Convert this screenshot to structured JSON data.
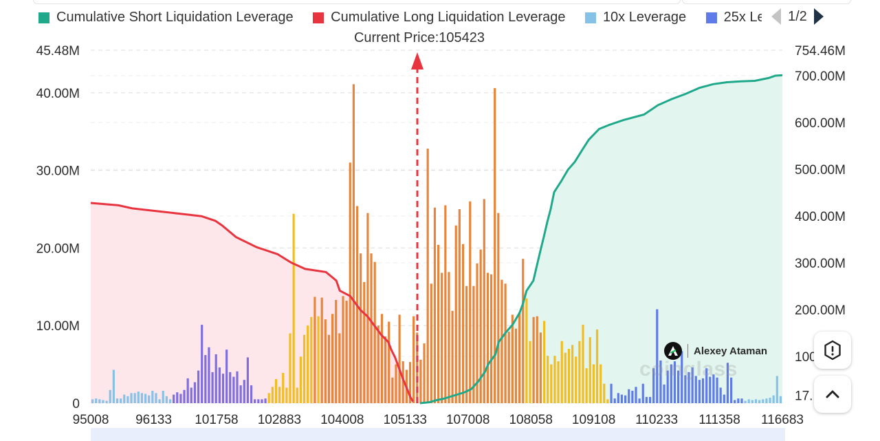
{
  "legend": {
    "items": [
      {
        "label": "Cumulative Short Liquidation Leverage",
        "color": "#1fa88a"
      },
      {
        "label": "Cumulative Long Liquidation Leverage",
        "color": "#e8343f"
      },
      {
        "label": "10x Leverage",
        "color": "#86c2e8"
      },
      {
        "label": "25x Leverage",
        "color": "#5f7bea"
      }
    ],
    "page": "1/2"
  },
  "current_price_label": "Current Price:105423",
  "watermark": {
    "author": "Alexey Ataman",
    "brand": "coinglass"
  },
  "colors": {
    "short_area": "#e2f5ef",
    "long_area": "#fde7ea",
    "bar_blue": "#5f7bea",
    "bar_purple": "#7f6ee0",
    "bar_lightblue": "#86c2e8",
    "bar_yellow": "#f2bd22",
    "bar_orange": "#e8853a",
    "marker": "#e8343f"
  },
  "chart_data": {
    "type": "bar",
    "x_ticks": [
      "95008",
      "96133",
      "101758",
      "102883",
      "104008",
      "105133",
      "107008",
      "108058",
      "109108",
      "110233",
      "111358",
      "116683"
    ],
    "left_axis": {
      "ticks": [
        "0",
        "10.00M",
        "20.00M",
        "30.00M",
        "40.00M",
        "45.48M"
      ],
      "max": 45.48
    },
    "right_axis": {
      "ticks": [
        "17.",
        "100",
        "200.00M",
        "300.00M",
        "400.00M",
        "500.00M",
        "600.00M",
        "700.00M",
        "754.46M"
      ],
      "max": 754.46
    },
    "current_price": 105423,
    "bars_unit": "M",
    "bars": [
      {
        "v": 0.5,
        "c": "lb"
      },
      {
        "v": 0.6,
        "c": "lb"
      },
      {
        "v": 0.5,
        "c": "lb"
      },
      {
        "v": 0.4,
        "c": "lb"
      },
      {
        "v": 0.3,
        "c": "lb"
      },
      {
        "v": 1.7,
        "c": "lb"
      },
      {
        "v": 4.3,
        "c": "lb"
      },
      {
        "v": 0.6,
        "c": "lb"
      },
      {
        "v": 0.6,
        "c": "lb"
      },
      {
        "v": 1.1,
        "c": "lb"
      },
      {
        "v": 0.9,
        "c": "lb"
      },
      {
        "v": 1.3,
        "c": "lb"
      },
      {
        "v": 1.3,
        "c": "lb"
      },
      {
        "v": 1.5,
        "c": "lb"
      },
      {
        "v": 1.3,
        "c": "lb"
      },
      {
        "v": 1.2,
        "c": "lb"
      },
      {
        "v": 1.0,
        "c": "lb"
      },
      {
        "v": 1.6,
        "c": "lb"
      },
      {
        "v": 1.3,
        "c": "lb"
      },
      {
        "v": 0.5,
        "c": "lb"
      },
      {
        "v": 1.6,
        "c": "lb"
      },
      {
        "v": 0.9,
        "c": "lb"
      },
      {
        "v": 0.5,
        "c": "lb"
      },
      {
        "v": 1.1,
        "c": "pu"
      },
      {
        "v": 1.4,
        "c": "pu"
      },
      {
        "v": 1.2,
        "c": "pu"
      },
      {
        "v": 1.7,
        "c": "pu"
      },
      {
        "v": 3.2,
        "c": "pu"
      },
      {
        "v": 2.0,
        "c": "pu"
      },
      {
        "v": 2.7,
        "c": "pu"
      },
      {
        "v": 4.2,
        "c": "pu"
      },
      {
        "v": 10.1,
        "c": "pu"
      },
      {
        "v": 6.2,
        "c": "pu"
      },
      {
        "v": 7.2,
        "c": "pu"
      },
      {
        "v": 4.0,
        "c": "pu"
      },
      {
        "v": 6.3,
        "c": "pu"
      },
      {
        "v": 4.6,
        "c": "pu"
      },
      {
        "v": 3.8,
        "c": "pu"
      },
      {
        "v": 6.9,
        "c": "pu"
      },
      {
        "v": 4.0,
        "c": "pu"
      },
      {
        "v": 3.4,
        "c": "pu"
      },
      {
        "v": 4.1,
        "c": "pu"
      },
      {
        "v": 2.3,
        "c": "pu"
      },
      {
        "v": 3.0,
        "c": "pu"
      },
      {
        "v": 5.9,
        "c": "pu"
      },
      {
        "v": 2.3,
        "c": "pu"
      },
      {
        "v": 0.5,
        "c": "pu"
      },
      {
        "v": 0.5,
        "c": "pu"
      },
      {
        "v": 0.5,
        "c": "pu"
      },
      {
        "v": 0.6,
        "c": "pu"
      },
      {
        "v": 1.3,
        "c": "ye"
      },
      {
        "v": 2.1,
        "c": "ye"
      },
      {
        "v": 3.1,
        "c": "ye"
      },
      {
        "v": 2.1,
        "c": "ye"
      },
      {
        "v": 3.9,
        "c": "ye"
      },
      {
        "v": 2.0,
        "c": "ye"
      },
      {
        "v": 9.0,
        "c": "ye"
      },
      {
        "v": 24.4,
        "c": "ye"
      },
      {
        "v": 2.0,
        "c": "ye"
      },
      {
        "v": 6.0,
        "c": "ye"
      },
      {
        "v": 8.8,
        "c": "ye"
      },
      {
        "v": 10.0,
        "c": "ye"
      },
      {
        "v": 11.1,
        "c": "ye"
      },
      {
        "v": 13.7,
        "c": "or"
      },
      {
        "v": 11.2,
        "c": "ye"
      },
      {
        "v": 13.6,
        "c": "or"
      },
      {
        "v": 10.8,
        "c": "or"
      },
      {
        "v": 8.8,
        "c": "or"
      },
      {
        "v": 11.5,
        "c": "or"
      },
      {
        "v": 13.3,
        "c": "or"
      },
      {
        "v": 9.0,
        "c": "or"
      },
      {
        "v": 13.8,
        "c": "or"
      },
      {
        "v": 13.2,
        "c": "or"
      },
      {
        "v": 31.0,
        "c": "or"
      },
      {
        "v": 41.1,
        "c": "or"
      },
      {
        "v": 25.4,
        "c": "or"
      },
      {
        "v": 19.3,
        "c": "or"
      },
      {
        "v": 15.6,
        "c": "or"
      },
      {
        "v": 24.5,
        "c": "or"
      },
      {
        "v": 19.3,
        "c": "or"
      },
      {
        "v": 18.2,
        "c": "or"
      },
      {
        "v": 10.0,
        "c": "or"
      },
      {
        "v": 11.5,
        "c": "or"
      },
      {
        "v": 8.6,
        "c": "or"
      },
      {
        "v": 10.5,
        "c": "or"
      },
      {
        "v": 3.3,
        "c": "or"
      },
      {
        "v": 5.0,
        "c": "or"
      },
      {
        "v": 11.4,
        "c": "or"
      },
      {
        "v": 5.4,
        "c": "or"
      },
      {
        "v": 4.3,
        "c": "or"
      },
      {
        "v": 5.3,
        "c": "or"
      },
      {
        "v": 11.2,
        "c": "or"
      },
      {
        "v": 9.1,
        "c": "or"
      },
      {
        "v": 5.6,
        "c": "or"
      },
      {
        "v": 7.7,
        "c": "or"
      },
      {
        "v": 32.8,
        "c": "or"
      },
      {
        "v": 15.4,
        "c": "or"
      },
      {
        "v": 25.2,
        "c": "or"
      },
      {
        "v": 20.4,
        "c": "or"
      },
      {
        "v": 16.8,
        "c": "or"
      },
      {
        "v": 25.5,
        "c": "or"
      },
      {
        "v": 16.9,
        "c": "or"
      },
      {
        "v": 11.9,
        "c": "or"
      },
      {
        "v": 22.9,
        "c": "or"
      },
      {
        "v": 25.0,
        "c": "or"
      },
      {
        "v": 20.5,
        "c": "or"
      },
      {
        "v": 15.1,
        "c": "or"
      },
      {
        "v": 26.0,
        "c": "or"
      },
      {
        "v": 15.1,
        "c": "or"
      },
      {
        "v": 18.0,
        "c": "or"
      },
      {
        "v": 19.8,
        "c": "or"
      },
      {
        "v": 26.3,
        "c": "or"
      },
      {
        "v": 16.8,
        "c": "or"
      },
      {
        "v": 16.6,
        "c": "or"
      },
      {
        "v": 40.6,
        "c": "or"
      },
      {
        "v": 24.5,
        "c": "or"
      },
      {
        "v": 15.9,
        "c": "or"
      },
      {
        "v": 15.4,
        "c": "or"
      },
      {
        "v": 9.2,
        "c": "or"
      },
      {
        "v": 11.4,
        "c": "or"
      },
      {
        "v": 9.6,
        "c": "or"
      },
      {
        "v": 11.7,
        "c": "or"
      },
      {
        "v": 18.6,
        "c": "or"
      },
      {
        "v": 13.5,
        "c": "ye"
      },
      {
        "v": 8.0,
        "c": "ye"
      },
      {
        "v": 11.1,
        "c": "or"
      },
      {
        "v": 11.2,
        "c": "or"
      },
      {
        "v": 9.1,
        "c": "or"
      },
      {
        "v": 10.6,
        "c": "ye"
      },
      {
        "v": 6.1,
        "c": "ye"
      },
      {
        "v": 5.0,
        "c": "ye"
      },
      {
        "v": 6.1,
        "c": "ye"
      },
      {
        "v": 5.4,
        "c": "ye"
      },
      {
        "v": 8.0,
        "c": "ye"
      },
      {
        "v": 6.5,
        "c": "ye"
      },
      {
        "v": 7.0,
        "c": "ye"
      },
      {
        "v": 7.5,
        "c": "ye"
      },
      {
        "v": 6.0,
        "c": "ye"
      },
      {
        "v": 8.0,
        "c": "ye"
      },
      {
        "v": 10.1,
        "c": "ye"
      },
      {
        "v": 4.5,
        "c": "ye"
      },
      {
        "v": 8.5,
        "c": "ye"
      },
      {
        "v": 5.0,
        "c": "ye"
      },
      {
        "v": 9.5,
        "c": "ye"
      },
      {
        "v": 5.0,
        "c": "ye"
      },
      {
        "v": 2.5,
        "c": "ye"
      },
      {
        "v": 0.5,
        "c": "ye"
      },
      {
        "v": 2.5,
        "c": "bl"
      },
      {
        "v": 0.6,
        "c": "bl"
      },
      {
        "v": 1.3,
        "c": "bl"
      },
      {
        "v": 1.1,
        "c": "bl"
      },
      {
        "v": 1.0,
        "c": "bl"
      },
      {
        "v": 1.8,
        "c": "bl"
      },
      {
        "v": 1.6,
        "c": "bl"
      },
      {
        "v": 2.1,
        "c": "bl"
      },
      {
        "v": 0.6,
        "c": "bl"
      },
      {
        "v": 2.5,
        "c": "bl"
      },
      {
        "v": 0.8,
        "c": "bl"
      },
      {
        "v": 0.8,
        "c": "bl"
      },
      {
        "v": 4.5,
        "c": "bl"
      },
      {
        "v": 12.1,
        "c": "bl"
      },
      {
        "v": 5.5,
        "c": "bl"
      },
      {
        "v": 2.4,
        "c": "bl"
      },
      {
        "v": 4.2,
        "c": "bl"
      },
      {
        "v": 5.0,
        "c": "bl"
      },
      {
        "v": 5.4,
        "c": "bl"
      },
      {
        "v": 4.2,
        "c": "bl"
      },
      {
        "v": 6.7,
        "c": "bl"
      },
      {
        "v": 3.6,
        "c": "bl"
      },
      {
        "v": 4.0,
        "c": "bl"
      },
      {
        "v": 4.6,
        "c": "bl"
      },
      {
        "v": 3.5,
        "c": "bl"
      },
      {
        "v": 3.0,
        "c": "bl"
      },
      {
        "v": 3.2,
        "c": "bl"
      },
      {
        "v": 4.5,
        "c": "bl"
      },
      {
        "v": 3.4,
        "c": "bl"
      },
      {
        "v": 3.7,
        "c": "bl"
      },
      {
        "v": 3.3,
        "c": "bl"
      },
      {
        "v": 2.0,
        "c": "bl"
      },
      {
        "v": 1.1,
        "c": "bl"
      },
      {
        "v": 5.2,
        "c": "bl"
      },
      {
        "v": 3.3,
        "c": "bl"
      },
      {
        "v": 0.4,
        "c": "bl"
      },
      {
        "v": 0.6,
        "c": "bl"
      },
      {
        "v": 0.6,
        "c": "bl"
      },
      {
        "v": 0.3,
        "c": "lb"
      },
      {
        "v": 0.5,
        "c": "lb"
      },
      {
        "v": 0.4,
        "c": "lb"
      },
      {
        "v": 0.5,
        "c": "lb"
      },
      {
        "v": 0.4,
        "c": "lb"
      },
      {
        "v": 0.5,
        "c": "lb"
      },
      {
        "v": 0.6,
        "c": "lb"
      },
      {
        "v": 0.7,
        "c": "lb"
      },
      {
        "v": 1.0,
        "c": "lb"
      },
      {
        "v": 3.5,
        "c": "lb"
      },
      {
        "v": 0.9,
        "c": "lb"
      }
    ],
    "long_curve": [
      [
        0,
        25.8
      ],
      [
        0.04,
        25.5
      ],
      [
        0.06,
        25.1
      ],
      [
        0.1,
        24.7
      ],
      [
        0.13,
        24.4
      ],
      [
        0.16,
        24.1
      ],
      [
        0.18,
        23.5
      ],
      [
        0.19,
        22.9
      ],
      [
        0.21,
        21.4
      ],
      [
        0.24,
        20.1
      ],
      [
        0.27,
        19.2
      ],
      [
        0.29,
        18.1
      ],
      [
        0.31,
        17.3
      ],
      [
        0.34,
        16.9
      ],
      [
        0.355,
        15.8
      ],
      [
        0.36,
        14.5
      ],
      [
        0.375,
        13.8
      ],
      [
        0.39,
        12.0
      ],
      [
        0.4,
        11.2
      ],
      [
        0.41,
        10.0
      ],
      [
        0.42,
        8.8
      ],
      [
        0.43,
        7.9
      ],
      [
        0.435,
        6.8
      ],
      [
        0.44,
        5.9
      ],
      [
        0.447,
        4.2
      ],
      [
        0.452,
        3.0
      ],
      [
        0.458,
        1.7
      ],
      [
        0.462,
        0.8
      ],
      [
        0.466,
        0.2
      ]
    ],
    "short_curve": [
      [
        0.476,
        0
      ],
      [
        0.49,
        2.0
      ],
      [
        0.5,
        6.5
      ],
      [
        0.51,
        9.5
      ],
      [
        0.52,
        14.0
      ],
      [
        0.54,
        23.0
      ],
      [
        0.55,
        30.0
      ],
      [
        0.56,
        46.0
      ],
      [
        0.57,
        67.0
      ],
      [
        0.575,
        84.0
      ],
      [
        0.585,
        104.0
      ],
      [
        0.59,
        131.0
      ],
      [
        0.6,
        151.0
      ],
      [
        0.61,
        168.0
      ],
      [
        0.62,
        193.0
      ],
      [
        0.625,
        213.0
      ],
      [
        0.63,
        240.0
      ],
      [
        0.64,
        262.0
      ],
      [
        0.645,
        294.0
      ],
      [
        0.65,
        325.0
      ],
      [
        0.655,
        355.0
      ],
      [
        0.66,
        387.0
      ],
      [
        0.665,
        415.0
      ],
      [
        0.67,
        451.0
      ],
      [
        0.68,
        474.0
      ],
      [
        0.69,
        499.0
      ],
      [
        0.7,
        516.0
      ],
      [
        0.71,
        540.0
      ],
      [
        0.72,
        563.0
      ],
      [
        0.735,
        586.0
      ],
      [
        0.75,
        595.0
      ],
      [
        0.77,
        605.0
      ],
      [
        0.8,
        617.0
      ],
      [
        0.82,
        637.0
      ],
      [
        0.84,
        650.0
      ],
      [
        0.86,
        661.0
      ],
      [
        0.88,
        674.0
      ],
      [
        0.9,
        682.0
      ],
      [
        0.92,
        686.0
      ],
      [
        0.94,
        688.0
      ],
      [
        0.96,
        689.0
      ],
      [
        0.98,
        695.0
      ],
      [
        0.99,
        700.0
      ],
      [
        1.0,
        701.0
      ]
    ]
  }
}
